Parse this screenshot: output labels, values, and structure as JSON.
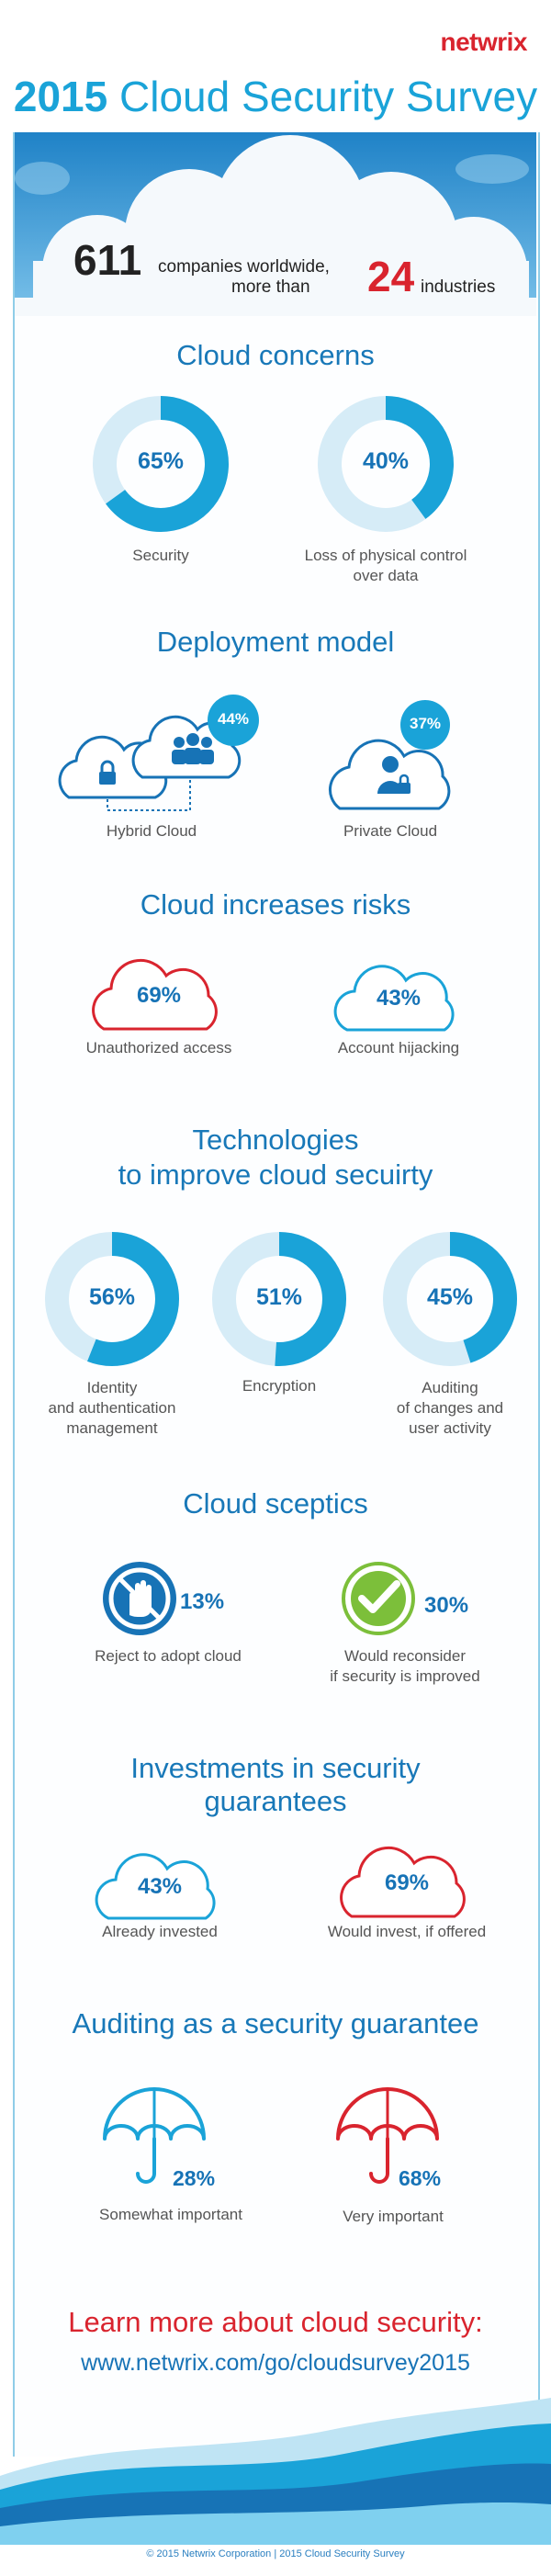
{
  "brand": {
    "logo": "netwrix",
    "accent": "#1aa3d8",
    "red": "#d9242e",
    "dark_blue": "#1773b6"
  },
  "header": {
    "year": "2015",
    "title_rest": "Cloud Security Survey"
  },
  "hero": {
    "companies_count": "611",
    "companies_text": "companies worldwide,",
    "industries_prefix": "more than",
    "industries_count": "24",
    "industries_text": "industries"
  },
  "cloud_concerns": {
    "heading": "Cloud concerns",
    "items": [
      {
        "percent": 65,
        "value": "65%",
        "label": "Security"
      },
      {
        "percent": 40,
        "value": "40%",
        "label_line1": "Loss of physical control",
        "label_line2": "over data"
      }
    ]
  },
  "deployment_model": {
    "heading": "Deployment model",
    "items": [
      {
        "value": "44%",
        "label": "Hybrid Cloud",
        "icon": "hybrid-cloud-icon"
      },
      {
        "value": "37%",
        "label": "Private Cloud",
        "icon": "private-cloud-icon"
      }
    ]
  },
  "cloud_risks": {
    "heading": "Cloud increases risks",
    "items": [
      {
        "value": "69%",
        "label": "Unauthorized access",
        "color": "#d9242e"
      },
      {
        "value": "43%",
        "label": "Account hijacking",
        "color": "#1aa3d8"
      }
    ]
  },
  "technologies": {
    "heading_line1": "Technologies",
    "heading_line2": "to improve cloud secuirty",
    "items": [
      {
        "percent": 56,
        "value": "56%",
        "label_line1": "Identity",
        "label_line2": "and authentication",
        "label_line3": "management"
      },
      {
        "percent": 51,
        "value": "51%",
        "label_line1": "Encryption",
        "label_line2": "",
        "label_line3": ""
      },
      {
        "percent": 45,
        "value": "45%",
        "label_line1": "Auditing",
        "label_line2": "of changes and",
        "label_line3": "user activity"
      }
    ]
  },
  "sceptics": {
    "heading": "Cloud sceptics",
    "items": [
      {
        "value": "13%",
        "label": "Reject to adopt cloud",
        "icon": "stop-hand-icon"
      },
      {
        "value": "30%",
        "label_line1": "Would reconsider",
        "label_line2": "if security is improved",
        "icon": "checkmark-icon"
      }
    ]
  },
  "investments": {
    "heading_line1": "Investments in security",
    "heading_line2": "guarantees",
    "items": [
      {
        "value": "43%",
        "label": "Already invested",
        "color": "#1aa3d8"
      },
      {
        "value": "69%",
        "label": "Would invest, if offered",
        "color": "#d9242e"
      }
    ]
  },
  "auditing": {
    "heading": "Auditing as a security guarantee",
    "items": [
      {
        "value": "28%",
        "label": "Somewhat important",
        "color": "#1aa3d8",
        "icon": "umbrella-icon"
      },
      {
        "value": "68%",
        "label": "Very important",
        "color": "#d9242e",
        "icon": "umbrella-icon"
      }
    ]
  },
  "cta": {
    "line1": "Learn more about cloud security:",
    "link": "www.netwrix.com/go/cloudsurvey2015"
  },
  "footer": {
    "copyright": "© 2015 Netwrix Corporation | 2015 Cloud Security Survey"
  }
}
